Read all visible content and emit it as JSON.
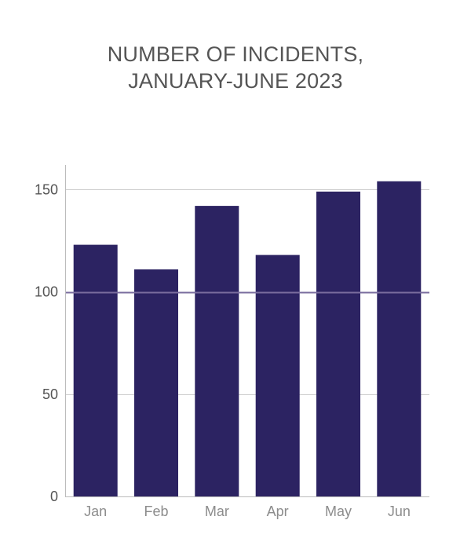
{
  "chart_data": {
    "type": "bar",
    "title_lines": [
      "NUMBER OF INCIDENTS,",
      "JANUARY-JUNE 2023"
    ],
    "categories": [
      "Jan",
      "Feb",
      "Mar",
      "Apr",
      "May",
      "Jun"
    ],
    "values": [
      123,
      111,
      142,
      118,
      149,
      154
    ],
    "xlabel": "",
    "ylabel": "",
    "ylim": [
      0,
      162
    ],
    "yticks": [
      0,
      50,
      100,
      150
    ],
    "ytick_labels": [
      "0",
      "50",
      "100",
      "150"
    ],
    "reference_line": 100,
    "grid": "horizontal",
    "legend": "none",
    "colors": {
      "bar": "#2c2362",
      "reference_line": "#7a6d9e",
      "grid": "#cccccc",
      "axis": "#bbbbbb"
    }
  }
}
